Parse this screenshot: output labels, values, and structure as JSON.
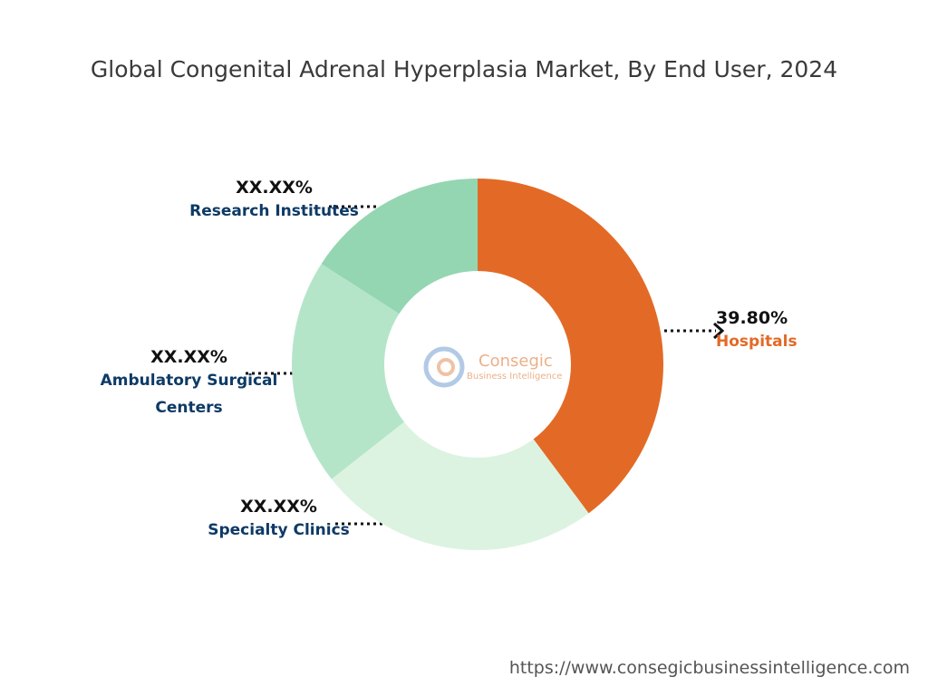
{
  "chart_data": {
    "type": "donut",
    "title": "Global Congenital Adrenal Hyperplasia Market, By End User, 2024",
    "categories": [
      "Hospitals",
      "Specialty Clinics",
      "Ambulatory Surgical Centers",
      "Research Institutes"
    ],
    "values": [
      39.8,
      24.6,
      19.7,
      15.9
    ],
    "value_labels": [
      "39.80%",
      "XX.XX%",
      "XX.XX%",
      "XX.XX%"
    ],
    "colors": [
      "#e36a26",
      "#dcf3e1",
      "#b5e5c9",
      "#94d6b2"
    ],
    "label_colors": [
      "#e36a26",
      "#0e3a66",
      "#0e3a66",
      "#0e3a66"
    ],
    "watermark": {
      "name": "Consegic",
      "tagline": "Business Intelligence"
    },
    "source": "https://www.consegicbusinessintelligence.com"
  }
}
